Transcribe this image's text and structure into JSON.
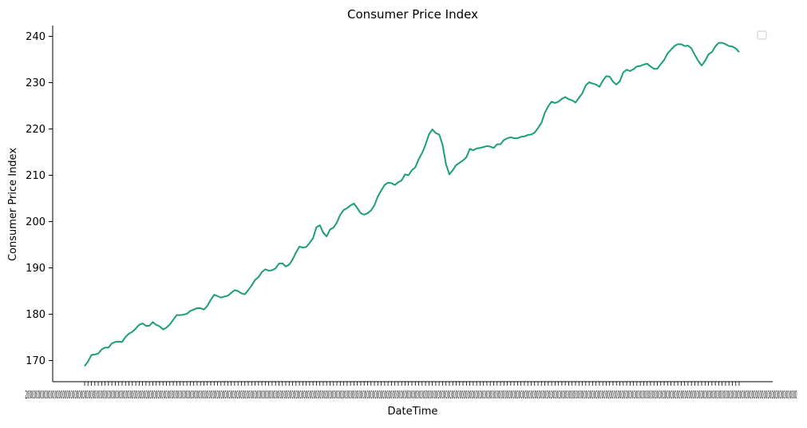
{
  "chart_data": {
    "type": "line",
    "title": "Consumer Price Index",
    "xlabel": "DateTime",
    "ylabel": "Consumer Price Index",
    "x_tick_labels_text": "2000000000000000000000000000000000000000000000000000000000000000000000000000000000000000000000000000000000000000000000000000000000000000000000000000000000000000000000000000000000000000000000000000000000000000000000000000000000000000000000000000000000000000000000000000000000000000000000000000000000000000000000000000000000000000000000000000000000000000000000000000000000000000000000000000000",
    "ylim": [
      166,
      242
    ],
    "yticks": [
      170,
      180,
      190,
      200,
      210,
      220,
      230,
      240
    ],
    "legend": {
      "visible": true,
      "placement": "top-right",
      "entries": []
    },
    "grid": false,
    "series": [
      {
        "color": "#1b9e77",
        "values": [
          168.8,
          169.8,
          171.2,
          171.3,
          171.5,
          172.4,
          172.8,
          172.8,
          173.7,
          174.0,
          174.1,
          174.0,
          175.1,
          175.8,
          176.2,
          176.9,
          177.7,
          178.0,
          177.5,
          177.5,
          178.3,
          177.7,
          177.4,
          176.7,
          177.1,
          177.8,
          178.8,
          179.8,
          179.8,
          179.9,
          180.1,
          180.7,
          181.0,
          181.3,
          181.3,
          181.0,
          181.8,
          183.1,
          184.2,
          183.9,
          183.6,
          183.8,
          184.0,
          184.6,
          185.2,
          185.0,
          184.5,
          184.3,
          185.2,
          186.2,
          187.4,
          188.0,
          189.1,
          189.7,
          189.4,
          189.5,
          189.9,
          190.9,
          191.0,
          190.3,
          190.7,
          191.8,
          193.3,
          194.6,
          194.4,
          194.5,
          195.4,
          196.4,
          198.8,
          199.2,
          197.6,
          196.8,
          198.3,
          198.7,
          199.8,
          201.5,
          202.5,
          202.9,
          203.5,
          203.9,
          202.9,
          201.8,
          201.5,
          201.8,
          202.4,
          203.5,
          205.4,
          206.7,
          207.9,
          208.4,
          208.3,
          207.9,
          208.5,
          208.9,
          210.2,
          210.0,
          211.1,
          211.7,
          213.5,
          214.8,
          216.6,
          218.8,
          219.9,
          219.1,
          218.8,
          216.6,
          212.4,
          210.2,
          211.1,
          212.2,
          212.7,
          213.2,
          213.9,
          215.7,
          215.4,
          215.8,
          215.9,
          216.1,
          216.3,
          216.2,
          215.9,
          216.7,
          216.7,
          217.6,
          218.0,
          218.2,
          218.0,
          218.0,
          218.3,
          218.4,
          218.7,
          218.8,
          219.2,
          220.2,
          221.3,
          223.5,
          224.9,
          225.9,
          225.6,
          225.9,
          226.5,
          226.9,
          226.4,
          226.2,
          225.7,
          226.7,
          227.7,
          229.4,
          230.1,
          229.8,
          229.6,
          229.1,
          230.4,
          231.4,
          231.3,
          230.2,
          229.6,
          230.3,
          232.2,
          232.8,
          232.5,
          232.9,
          233.5,
          233.6,
          233.9,
          234.1,
          233.5,
          233.0,
          233.0,
          234.0,
          234.9,
          236.3,
          237.1,
          237.9,
          238.3,
          238.3,
          237.9,
          238.0,
          237.4,
          236.0,
          234.7,
          233.7,
          234.7,
          236.1,
          236.6,
          237.8,
          238.6,
          238.6,
          238.3,
          237.9,
          237.8,
          237.4,
          236.6
        ]
      }
    ]
  }
}
